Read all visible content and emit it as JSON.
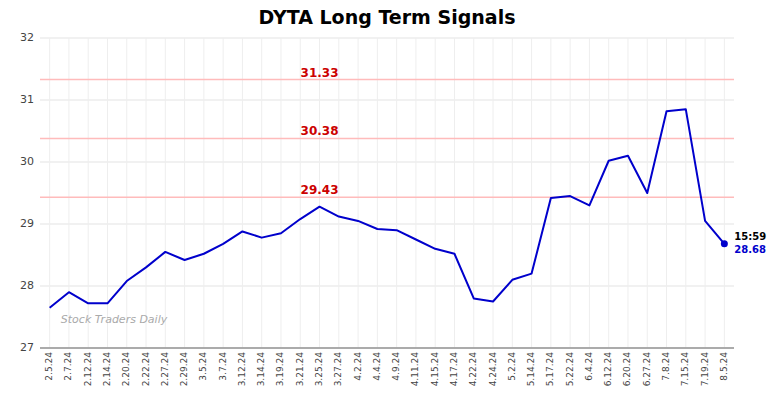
{
  "chart_data": {
    "type": "line",
    "title": "DYTA Long Term Signals",
    "color": "#0000cc",
    "categories": [
      "2.5.24",
      "2.7.24",
      "2.12.24",
      "2.14.24",
      "2.20.24",
      "2.22.24",
      "2.27.24",
      "2.29.24",
      "3.5.24",
      "3.7.24",
      "3.12.24",
      "3.14.24",
      "3.19.24",
      "3.21.24",
      "3.25.24",
      "3.27.24",
      "4.2.24",
      "4.4.24",
      "4.9.24",
      "4.11.24",
      "4.15.24",
      "4.17.24",
      "4.22.24",
      "4.24.24",
      "5.2.24",
      "5.14.24",
      "5.17.24",
      "5.22.24",
      "6.4.24",
      "6.12.24",
      "6.20.24",
      "6.27.24",
      "7.8.24",
      "7.15.24",
      "7.19.24",
      "8.5.24"
    ],
    "values": [
      27.65,
      27.9,
      27.72,
      27.72,
      28.08,
      28.3,
      28.55,
      28.42,
      28.52,
      28.68,
      28.88,
      28.78,
      28.85,
      29.08,
      29.28,
      29.12,
      29.05,
      28.92,
      28.9,
      28.75,
      28.6,
      28.52,
      27.8,
      27.75,
      28.1,
      28.2,
      29.42,
      29.45,
      29.3,
      30.02,
      30.1,
      29.5,
      30.82,
      30.85,
      29.05,
      28.68
    ],
    "ylim": [
      27,
      32
    ],
    "yticks": [
      27,
      28,
      29,
      30,
      31,
      32
    ],
    "grid": true,
    "hlines": [
      {
        "value": 31.33,
        "label": "31.33",
        "color": "#cc0000"
      },
      {
        "value": 30.38,
        "label": "30.38",
        "color": "#cc0000"
      },
      {
        "value": 29.43,
        "label": "29.43",
        "color": "#cc0000"
      }
    ],
    "watermark": "Stock Traders Daily",
    "annotations": [
      {
        "text": "15:59",
        "color": "#000000"
      },
      {
        "text": "28.68",
        "color": "#0000cc"
      }
    ]
  }
}
